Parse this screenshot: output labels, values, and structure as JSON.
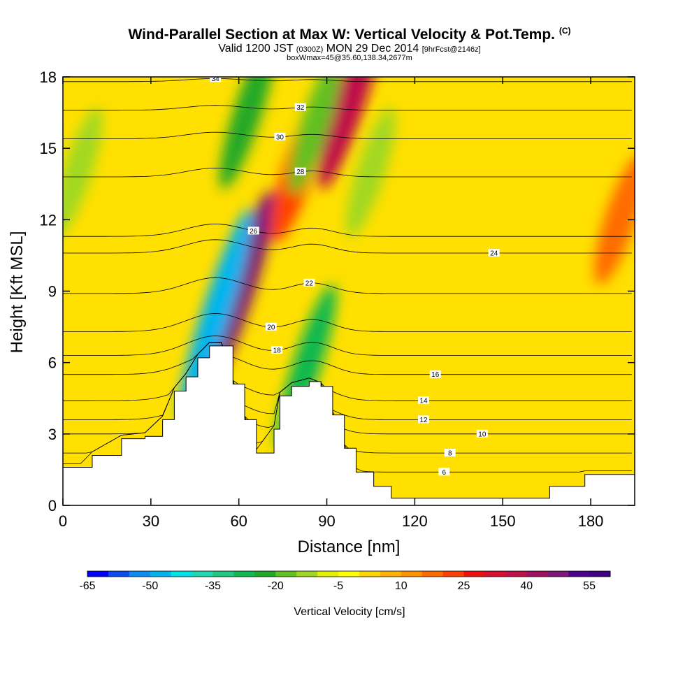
{
  "header": {
    "title_main": "Wind-Parallel Section at Max W: Vertical Velocity & Pot.Temp.",
    "title_sup": "(C)",
    "subtitle_a": "Valid 1200 JST",
    "subtitle_b": "(0300Z)",
    "subtitle_c": "MON 29 Dec 2014",
    "subtitle_d": "[9hrFcst@2146z]",
    "subtitle_line2": "boxWmax=45@35.60,138.34,2677m"
  },
  "chart_data": {
    "type": "heatmap",
    "title": "Wind-Parallel Section at Max W: Vertical Velocity & Pot.Temp.",
    "xlabel": "Distance [nm]",
    "ylabel": "Height [Kft MSL]",
    "xlim": [
      0,
      195
    ],
    "ylim": [
      0,
      18
    ],
    "x_ticks": [
      0,
      30,
      60,
      90,
      120,
      150,
      180
    ],
    "y_ticks": [
      0,
      3,
      6,
      9,
      12,
      15,
      18
    ],
    "colorbar": {
      "title": "Vertical Velocity [cm/s]",
      "min": -65,
      "max": 60,
      "step": 5,
      "tick_values": [
        -65,
        -50,
        -35,
        -20,
        -5,
        10,
        25,
        40,
        55
      ],
      "colors": [
        "#0000ff",
        "#0a4cf0",
        "#0a8cf0",
        "#00b4f0",
        "#00e0e8",
        "#20d8b0",
        "#20c880",
        "#10b850",
        "#20a828",
        "#60c020",
        "#a0d820",
        "#e0f000",
        "#ffff00",
        "#ffd700",
        "#ffb000",
        "#ff9000",
        "#ff6a00",
        "#ff4000",
        "#ee1010",
        "#d80f30",
        "#c01048",
        "#a01060",
        "#801878",
        "#500090",
        "#400080"
      ]
    },
    "theta_contours": [
      {
        "value": 6,
        "label": "6",
        "height": 1.4,
        "label_x": 130
      },
      {
        "value": 8,
        "label": "8",
        "height": 2.2,
        "label_x": 132
      },
      {
        "value": 10,
        "label": "10",
        "height": 3.0,
        "label_x": 143
      },
      {
        "value": 12,
        "label": "12",
        "height": 3.6,
        "label_x": 123
      },
      {
        "value": 14,
        "label": "14",
        "height": 4.4,
        "label_x": 123
      },
      {
        "value": 16,
        "label": "16",
        "height": 5.5,
        "label_x": 127
      },
      {
        "value": 18,
        "label": "18",
        "height": 6.3,
        "label_x": 73
      },
      {
        "value": 20,
        "label": "20",
        "height": 7.3,
        "label_x": 71
      },
      {
        "value": 22,
        "label": "22",
        "height": 8.9,
        "label_x": 84
      },
      {
        "value": 24,
        "label": "24",
        "height": 10.6,
        "label_x": 147
      },
      {
        "value": 26,
        "label": "26",
        "height": 11.3,
        "label_x": 65
      },
      {
        "value": 28,
        "label": "28",
        "height": 13.8,
        "label_x": 81
      },
      {
        "value": 30,
        "label": "30",
        "height": 15.4,
        "label_x": 74
      },
      {
        "value": 32,
        "label": "32",
        "height": 16.6,
        "label_x": 81
      },
      {
        "value": 34,
        "label": "34",
        "height": 17.8,
        "label_x": 52
      }
    ],
    "terrain_profile": {
      "x": [
        0,
        6,
        10,
        20,
        28,
        34,
        38,
        42,
        46,
        50,
        54,
        58,
        62,
        66,
        72,
        74,
        78,
        84,
        88,
        92,
        96,
        100,
        106,
        112,
        118,
        124,
        130,
        136,
        142,
        148,
        154,
        160,
        166,
        172,
        178,
        184,
        190,
        195
      ],
      "height_kft": [
        1.6,
        1.6,
        2.1,
        2.8,
        2.9,
        3.6,
        4.8,
        5.4,
        6.2,
        6.7,
        6.7,
        5.1,
        3.6,
        2.2,
        3.2,
        4.6,
        5.0,
        5.2,
        5.0,
        3.8,
        2.4,
        1.4,
        0.8,
        0.3,
        0.3,
        0.3,
        0.3,
        0.3,
        0.3,
        0.3,
        0.3,
        0.3,
        0.8,
        0.8,
        1.3,
        1.3,
        1.3,
        1.3
      ]
    },
    "velocity_features": [
      {
        "kind": "updraft",
        "x": 60,
        "height": 9.0,
        "w": 45
      },
      {
        "kind": "downdraft",
        "x": 52,
        "height": 8.0,
        "w": -50
      },
      {
        "kind": "updraft",
        "x": 98,
        "height": 17.0,
        "w": 35
      },
      {
        "kind": "updraft",
        "x": 80,
        "height": 14.0,
        "w": 20
      },
      {
        "kind": "downdraft",
        "x": 63,
        "height": 16.5,
        "w": -25
      },
      {
        "kind": "downdraft",
        "x": 86,
        "height": 16.0,
        "w": -20
      },
      {
        "kind": "downdraft",
        "x": 83,
        "height": 5.8,
        "w": -30
      },
      {
        "kind": "downdraft",
        "x": 5,
        "height": 14.0,
        "w": -15
      },
      {
        "kind": "downdraft",
        "x": 105,
        "height": 14.0,
        "w": -15
      },
      {
        "kind": "updraft",
        "x": 190,
        "height": 12.0,
        "w": 15
      }
    ]
  }
}
